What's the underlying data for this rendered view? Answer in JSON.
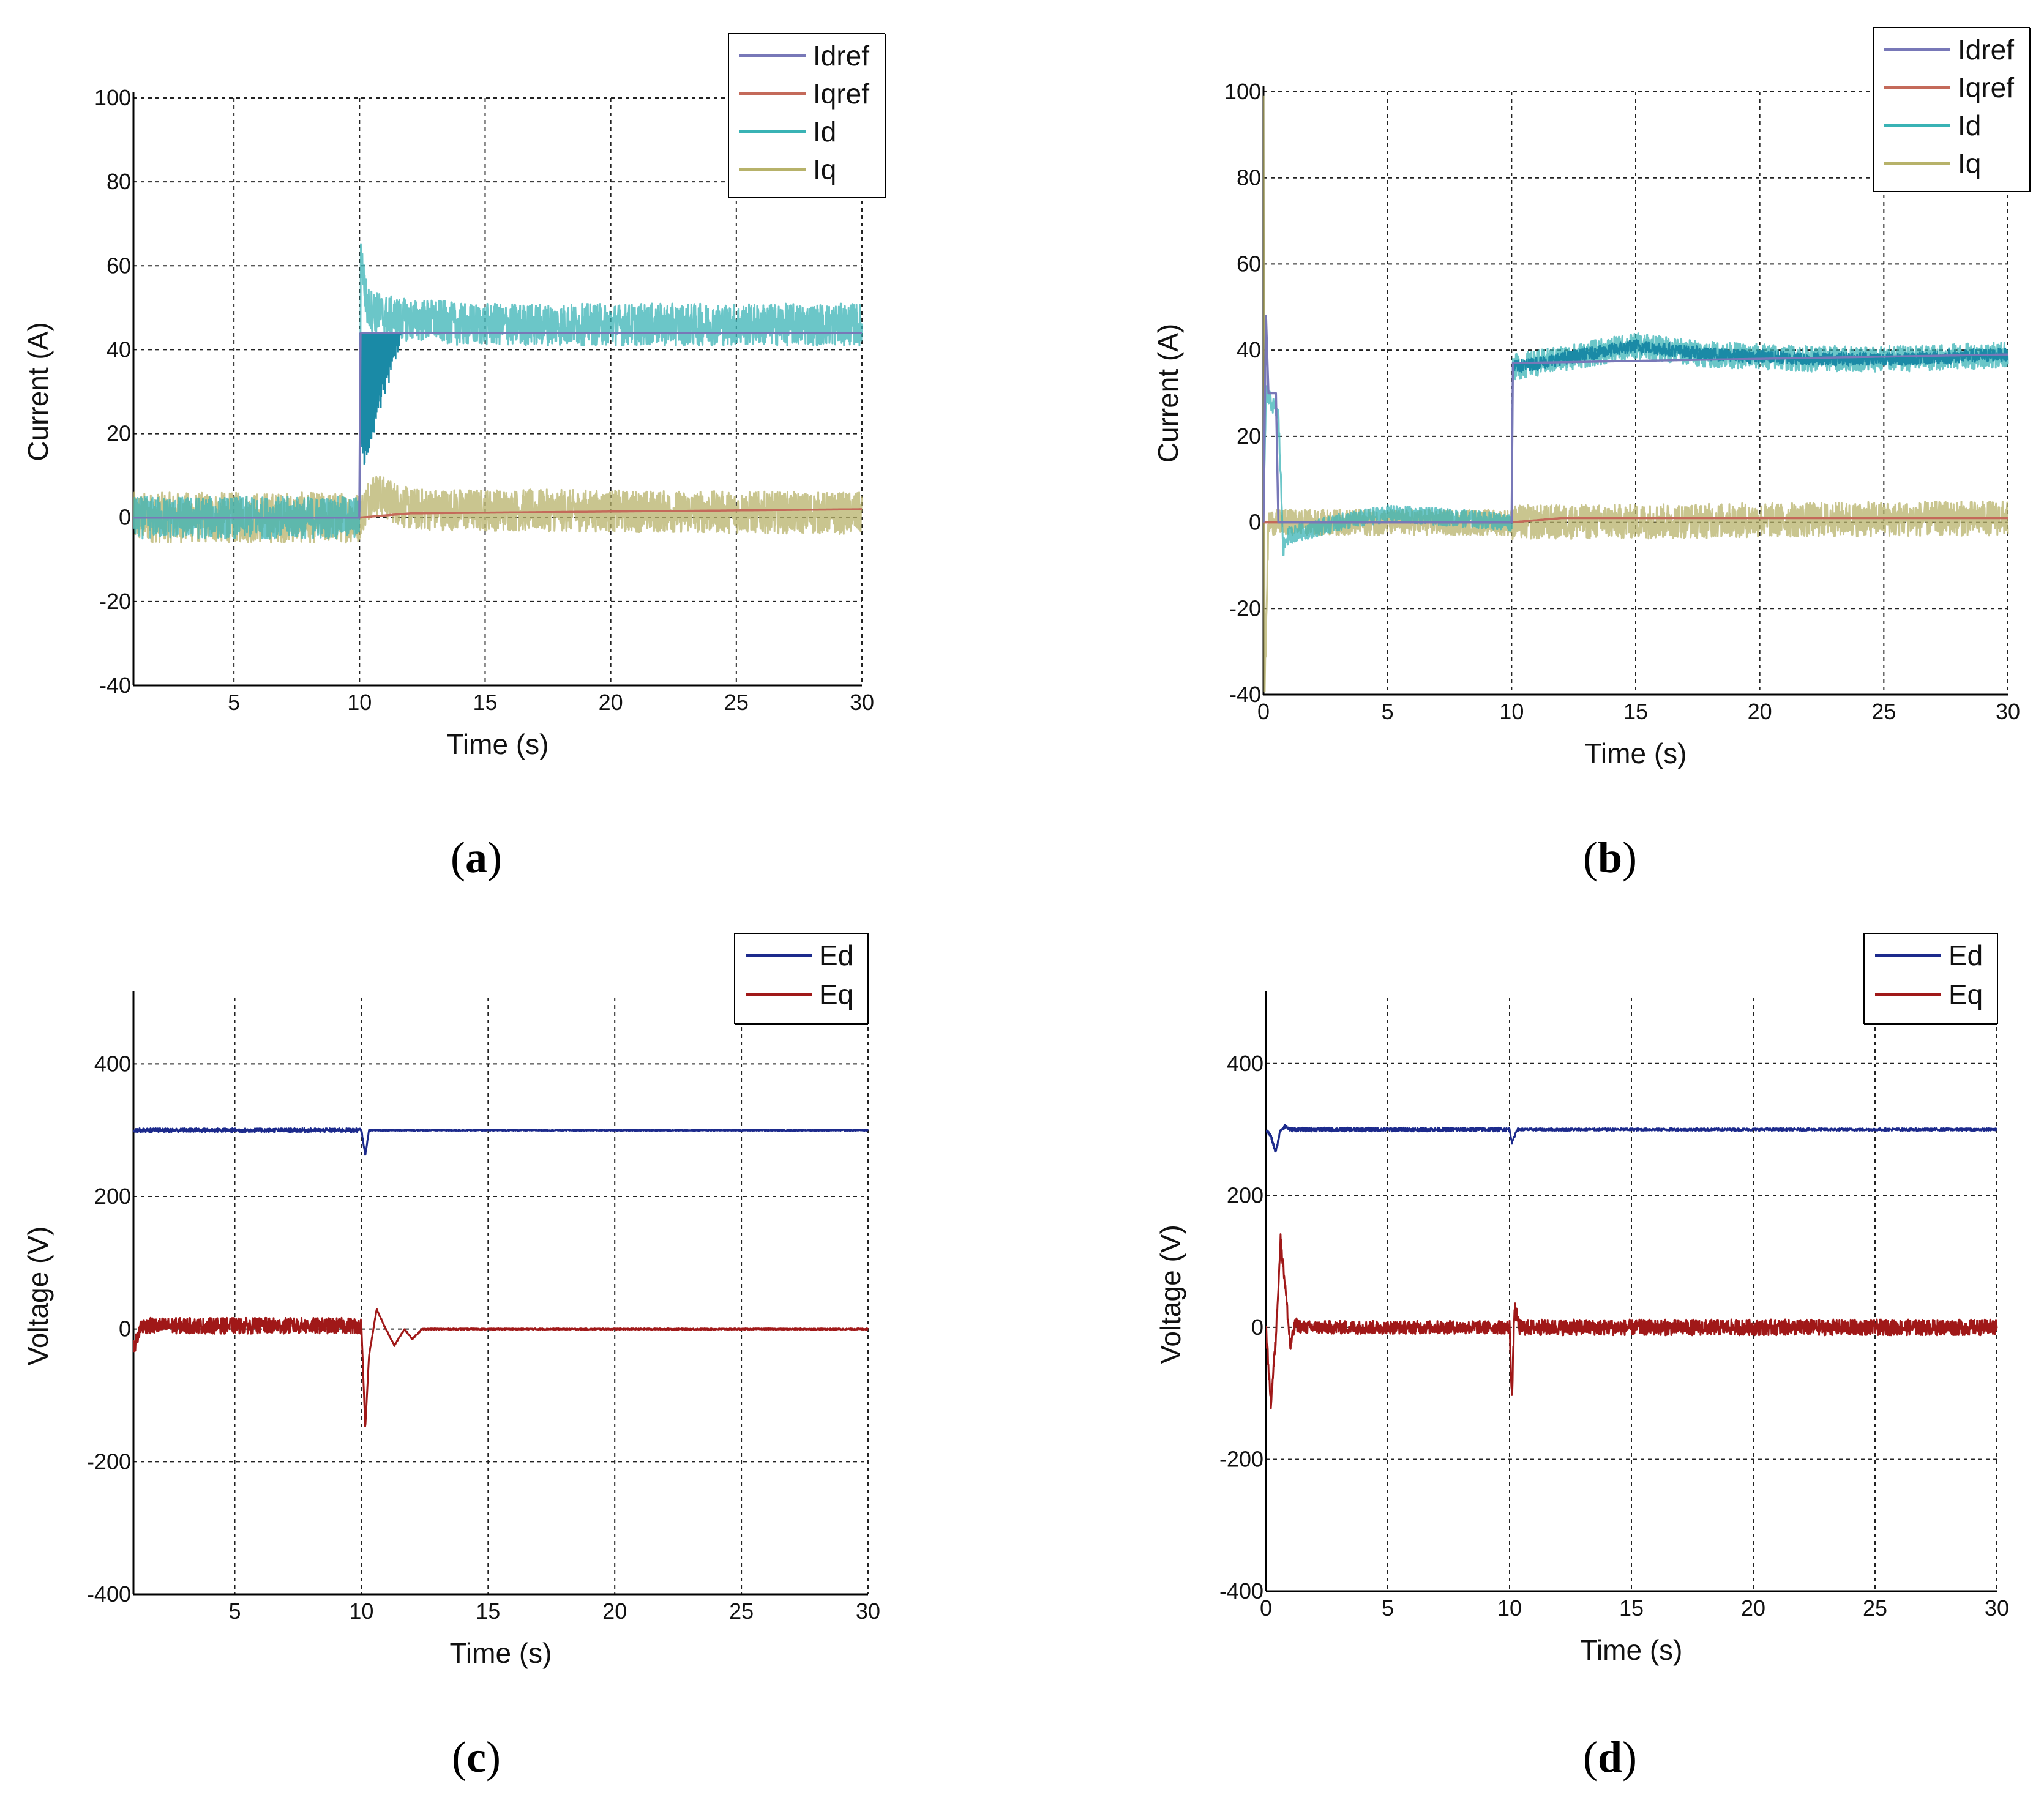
{
  "colors": {
    "Idref": "#7878b8",
    "Iqref": "#c46a5a",
    "Id": "#39b3b5",
    "Id_dark": "#1a8aa6",
    "Iq": "#b7b26a",
    "Ed": "#1c2a8c",
    "Eq": "#a01818",
    "grid": "#222222"
  },
  "chart_data": [
    {
      "id": "a",
      "type": "line",
      "panel_label": "a",
      "xlabel": "Time (s)",
      "ylabel": "Current (A)",
      "xlim": [
        1,
        30
      ],
      "ylim": [
        -40,
        100
      ],
      "xticks": [
        5,
        10,
        15,
        20,
        25,
        30
      ],
      "yticks": [
        -40,
        -20,
        0,
        20,
        40,
        60,
        80,
        100
      ],
      "legend": [
        "Idref",
        "Iqref",
        "Id",
        "Iq"
      ],
      "legend_position": "top-right",
      "series": [
        {
          "name": "Idref",
          "x": [
            1,
            10,
            10.01,
            30
          ],
          "values": [
            0,
            0,
            44,
            44
          ]
        },
        {
          "name": "Iqref",
          "x": [
            1,
            10,
            12,
            30
          ],
          "values": [
            0,
            0,
            1,
            2
          ]
        },
        {
          "name": "Id",
          "x": [
            1,
            10,
            10.05,
            10.3,
            11,
            12,
            13,
            14,
            17,
            30
          ],
          "values": [
            0,
            0,
            63,
            50,
            48,
            47,
            47,
            46,
            46,
            46
          ],
          "noise_before": 5,
          "noise_after": 5
        },
        {
          "name": "Iq",
          "x": [
            1,
            10,
            10.5,
            12,
            30
          ],
          "values": [
            0,
            0,
            6,
            2,
            1
          ],
          "noise_before": 6,
          "noise_after": 5
        }
      ]
    },
    {
      "id": "b",
      "type": "line",
      "panel_label": "b",
      "xlabel": "Time (s)",
      "ylabel": "Current (A)",
      "xlim": [
        0,
        30
      ],
      "ylim": [
        -40,
        100
      ],
      "xticks": [
        0,
        5,
        10,
        15,
        20,
        25,
        30
      ],
      "yticks": [
        -40,
        -20,
        0,
        20,
        40,
        60,
        80,
        100
      ],
      "legend": [
        "Idref",
        "Iqref",
        "Id",
        "Iq"
      ],
      "legend_position": "top-right",
      "series": [
        {
          "name": "Idref",
          "x": [
            0,
            0.1,
            0.2,
            0.5,
            0.6,
            1,
            10,
            10.01,
            30
          ],
          "values": [
            0,
            48,
            30,
            30,
            0,
            0,
            0,
            37,
            39
          ]
        },
        {
          "name": "Iqref",
          "x": [
            0,
            10,
            12,
            30
          ],
          "values": [
            0,
            0,
            1,
            1
          ]
        },
        {
          "name": "Id",
          "x": [
            0,
            0.1,
            0.3,
            0.6,
            0.8,
            1,
            3,
            5,
            8,
            10,
            10.05,
            12,
            15,
            18,
            22,
            26,
            30
          ],
          "values": [
            0,
            30,
            28,
            25,
            -6,
            -3,
            0,
            2,
            1,
            0,
            36,
            38,
            41,
            39,
            38,
            38,
            39
          ],
          "noise_before": 2,
          "noise_after": 3
        },
        {
          "name": "Iq",
          "x": [
            0,
            0.05,
            0.2,
            1,
            10,
            30
          ],
          "values": [
            100,
            -38,
            0,
            0,
            0,
            1
          ],
          "noise_before": 3,
          "noise_after": 4
        }
      ]
    },
    {
      "id": "c",
      "type": "line",
      "panel_label": "c",
      "xlabel": "Time (s)",
      "ylabel": "Voltage (V)",
      "xlim": [
        1,
        30
      ],
      "ylim": [
        -400,
        500
      ],
      "xticks": [
        5,
        10,
        15,
        20,
        25,
        30
      ],
      "yticks": [
        -400,
        -200,
        0,
        200,
        400
      ],
      "legend": [
        "Ed",
        "Eq"
      ],
      "legend_position": "top-right",
      "series": [
        {
          "name": "Ed",
          "x": [
            1,
            10,
            10.15,
            10.3,
            10.6,
            30
          ],
          "values": [
            300,
            300,
            262,
            300,
            300,
            300
          ],
          "noise_before": 3,
          "noise_after": 1
        },
        {
          "name": "Eq",
          "x": [
            1,
            1.3,
            10,
            10.15,
            10.3,
            10.6,
            10.9,
            11.3,
            11.7,
            12,
            12.4,
            30
          ],
          "values": [
            -30,
            5,
            5,
            -150,
            -40,
            30,
            5,
            -25,
            0,
            -15,
            0,
            0
          ],
          "noise_before": 12,
          "noise_after": 1
        }
      ]
    },
    {
      "id": "d",
      "type": "line",
      "panel_label": "d",
      "xlabel": "Time (s)",
      "ylabel": "Voltage (V)",
      "xlim": [
        0,
        30
      ],
      "ylim": [
        -400,
        500
      ],
      "xticks": [
        0,
        5,
        10,
        15,
        20,
        25,
        30
      ],
      "yticks": [
        -400,
        -200,
        0,
        200,
        400
      ],
      "legend": [
        "Ed",
        "Eq"
      ],
      "legend_position": "top-right",
      "series": [
        {
          "name": "Ed",
          "x": [
            0,
            0.2,
            0.4,
            0.6,
            0.8,
            1,
            10,
            10.1,
            10.3,
            30
          ],
          "values": [
            300,
            290,
            265,
            300,
            305,
            300,
            300,
            280,
            300,
            300
          ],
          "noise_before": 3,
          "noise_after": 2
        },
        {
          "name": "Eq",
          "x": [
            0,
            0.2,
            0.4,
            0.6,
            0.8,
            1,
            1.2,
            1.5,
            10,
            10.1,
            10.2,
            10.4,
            10.6,
            30
          ],
          "values": [
            0,
            -115,
            -20,
            135,
            60,
            -30,
            5,
            0,
            0,
            -110,
            30,
            0,
            0,
            0
          ],
          "noise_before": 10,
          "noise_after": 12
        }
      ]
    }
  ]
}
